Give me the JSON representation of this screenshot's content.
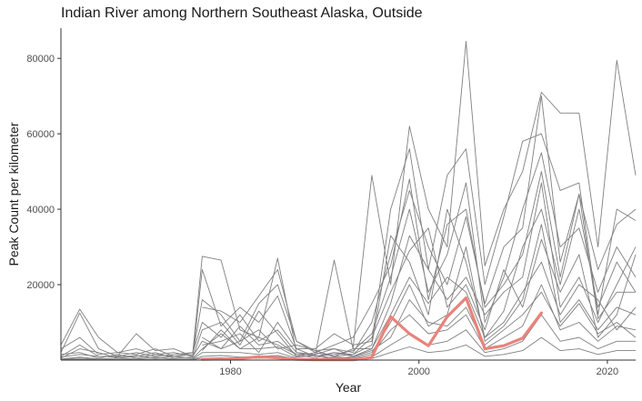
{
  "chart_data": {
    "type": "line",
    "title": "Indian River among Northern Southeast Alaska, Outside",
    "xlabel": "Year",
    "ylabel": "Peak Count per kilometer",
    "xlim": [
      1962,
      2023
    ],
    "ylim": [
      0,
      88000
    ],
    "x_ticks": [
      1980,
      2000,
      2020
    ],
    "y_ticks": [
      20000,
      40000,
      60000,
      80000
    ],
    "grid": false,
    "legend": "none",
    "colors": {
      "highlight": "#E8837A",
      "background_series": "#808080",
      "axis": "#333333",
      "tick_text": "#4d4d4d"
    },
    "highlight_series": {
      "name": "Indian River",
      "x": [
        1977,
        1979,
        1981,
        1983,
        1985,
        1987,
        1989,
        1991,
        1993,
        1995,
        1997,
        1999,
        2001,
        2003,
        2005,
        2007,
        2009,
        2011,
        2013
      ],
      "values": [
        200,
        300,
        400,
        900,
        600,
        200,
        100,
        100,
        100,
        700,
        11500,
        7000,
        3800,
        11500,
        16500,
        3000,
        3800,
        5800,
        12500
      ]
    },
    "background_series": [
      {
        "x": [
          1962,
          1964,
          1966,
          1968,
          1970,
          1972,
          1974,
          1976,
          1977,
          1979,
          1981,
          1983,
          1985,
          1987,
          1989,
          1991,
          1993,
          1995,
          1997,
          1999,
          2001,
          2003,
          2005,
          2007,
          2009,
          2011,
          2013,
          2015,
          2017,
          2019,
          2021,
          2023
        ],
        "values": [
          4000,
          13500,
          6000,
          2000,
          3000,
          1500,
          1000,
          2000,
          27500,
          26500,
          8000,
          6000,
          27000,
          2000,
          1500,
          26500,
          3000,
          49000,
          20000,
          62000,
          40000,
          30000,
          84500,
          25000,
          40000,
          50000,
          71000,
          65500,
          65500,
          30000,
          79500,
          49000
        ]
      },
      {
        "x": [
          1962,
          1964,
          1966,
          1968,
          1970,
          1972,
          1974,
          1976,
          1977,
          1979,
          1981,
          1983,
          1985,
          1987,
          1989,
          1991,
          1993,
          1995,
          1997,
          1999,
          2001,
          2003,
          2005,
          2007,
          2009,
          2011,
          2013,
          2015,
          2017,
          2019,
          2021,
          2023
        ],
        "values": [
          2000,
          12500,
          3000,
          1000,
          7000,
          2500,
          3000,
          1000,
          24000,
          9000,
          14000,
          10000,
          17000,
          3000,
          3000,
          7000,
          4000,
          5000,
          40000,
          56000,
          24000,
          49000,
          56000,
          20000,
          38000,
          58000,
          60000,
          45000,
          47000,
          12000,
          40000,
          37000
        ]
      },
      {
        "x": [
          1962,
          1964,
          1966,
          1968,
          1970,
          1972,
          1974,
          1976,
          1977,
          1979,
          1981,
          1983,
          1985,
          1987,
          1989,
          1991,
          1993,
          1995,
          1997,
          1999,
          2001,
          2003,
          2005,
          2007,
          2009,
          2011,
          2013,
          2015,
          2017,
          2019,
          2021,
          2023
        ],
        "values": [
          3000,
          6000,
          1500,
          2000,
          1500,
          3000,
          1000,
          1500,
          16000,
          12000,
          5000,
          15000,
          20000,
          5000,
          2500,
          3000,
          2000,
          10000,
          28000,
          45000,
          30000,
          20000,
          38000,
          15000,
          30000,
          35000,
          70000,
          26000,
          44000,
          24000,
          36000,
          40000
        ]
      },
      {
        "x": [
          1962,
          1964,
          1966,
          1968,
          1970,
          1972,
          1974,
          1976,
          1977,
          1979,
          1981,
          1983,
          1985,
          1987,
          1989,
          1991,
          1993,
          1995,
          1997,
          1999,
          2001,
          2003,
          2005,
          2007,
          2009,
          2011,
          2013,
          2015,
          2017,
          2019,
          2021,
          2023
        ],
        "values": [
          1000,
          4000,
          1000,
          1000,
          2000,
          1000,
          1500,
          2000,
          10000,
          6000,
          12000,
          5000,
          8000,
          2000,
          1000,
          1500,
          2500,
          7000,
          22000,
          40000,
          18000,
          28000,
          47000,
          10000,
          22000,
          40000,
          55000,
          30000,
          35000,
          18000,
          30000,
          22000
        ]
      },
      {
        "x": [
          1962,
          1964,
          1966,
          1968,
          1970,
          1972,
          1974,
          1976,
          1977,
          1979,
          1981,
          1983,
          1985,
          1987,
          1989,
          1991,
          1993,
          1995,
          1997,
          1999,
          2001,
          2003,
          2005,
          2007,
          2009,
          2011,
          2013,
          2015,
          2017,
          2019,
          2021,
          2023
        ],
        "values": [
          500,
          3000,
          2000,
          500,
          1000,
          2000,
          500,
          800,
          8000,
          10000,
          4000,
          13000,
          7000,
          1000,
          2000,
          1000,
          1500,
          4000,
          33000,
          26000,
          12000,
          40000,
          26000,
          6000,
          13000,
          30000,
          40000,
          20000,
          40000,
          14000,
          26000,
          18000
        ]
      },
      {
        "x": [
          1962,
          1964,
          1966,
          1968,
          1970,
          1972,
          1974,
          1976,
          1977,
          1979,
          1981,
          1983,
          1985,
          1987,
          1989,
          1991,
          1993,
          1995,
          1997,
          1999,
          2001,
          2003,
          2005,
          2007,
          2009,
          2011,
          2013,
          2015,
          2017,
          2019,
          2021,
          2023
        ],
        "values": [
          1500,
          2000,
          500,
          1500,
          500,
          1500,
          2000,
          1000,
          5000,
          3000,
          9000,
          4000,
          5000,
          1500,
          500,
          2000,
          1000,
          3000,
          15000,
          33000,
          24000,
          16000,
          22000,
          12000,
          18000,
          22000,
          47000,
          14000,
          22000,
          10000,
          20000,
          30000
        ]
      },
      {
        "x": [
          1962,
          1964,
          1966,
          1968,
          1970,
          1972,
          1974,
          1976,
          1977,
          1979,
          1981,
          1983,
          1985,
          1987,
          1989,
          1991,
          1993,
          1995,
          1997,
          1999,
          2001,
          2003,
          2005,
          2007,
          2009,
          2011,
          2013,
          2015,
          2017,
          2019,
          2021,
          2023
        ],
        "values": [
          800,
          1500,
          1000,
          800,
          1200,
          500,
          1000,
          500,
          3000,
          7000,
          3000,
          3000,
          3500,
          800,
          1200,
          500,
          800,
          2000,
          10000,
          20000,
          9000,
          12000,
          30000,
          5000,
          9000,
          16000,
          36000,
          10000,
          16000,
          8000,
          14000,
          12000
        ]
      },
      {
        "x": [
          1962,
          1964,
          1966,
          1968,
          1970,
          1972,
          1974,
          1976,
          1977,
          1979,
          1981,
          1983,
          1985,
          1987,
          1989,
          1991,
          1993,
          1995,
          1997,
          1999,
          2001,
          2003,
          2005,
          2007,
          2009,
          2011,
          2013,
          2015,
          2017,
          2019,
          2021,
          2023
        ],
        "values": [
          300,
          800,
          300,
          500,
          300,
          800,
          300,
          300,
          2000,
          2000,
          2000,
          1500,
          2000,
          500,
          300,
          800,
          500,
          1500,
          8000,
          12000,
          7000,
          8000,
          12000,
          3000,
          6000,
          9000,
          20000,
          8000,
          10000,
          5000,
          9000,
          8000
        ]
      },
      {
        "x": [
          1962,
          1964,
          1966,
          1968,
          1970,
          1972,
          1974,
          1976,
          1977,
          1979,
          1981,
          1983,
          1985,
          1987,
          1989,
          1991,
          1993,
          1995,
          1997,
          1999,
          2001,
          2003,
          2005,
          2007,
          2009,
          2011,
          2013,
          2015,
          2017,
          2019,
          2021,
          2023
        ],
        "values": [
          200,
          500,
          200,
          200,
          200,
          300,
          200,
          200,
          1000,
          1200,
          800,
          1000,
          1200,
          300,
          200,
          400,
          300,
          800,
          4000,
          7000,
          4000,
          5000,
          8000,
          2000,
          3000,
          5000,
          12000,
          5000,
          6000,
          3000,
          5000,
          5000
        ]
      },
      {
        "x": [
          1962,
          1964,
          1966,
          1968,
          1970,
          1972,
          1974,
          1976,
          1977,
          1979,
          1981,
          1983,
          1985,
          1987,
          1989,
          1991,
          1993,
          1995,
          1997,
          1999,
          2001,
          2003,
          2005,
          2007,
          2009,
          2011,
          2013,
          2015,
          2017,
          2019,
          2021,
          2023
        ],
        "values": [
          100,
          200,
          100,
          100,
          100,
          100,
          100,
          100,
          500,
          600,
          400,
          500,
          600,
          200,
          100,
          200,
          200,
          400,
          2000,
          3500,
          2000,
          2500,
          4000,
          1000,
          1500,
          2500,
          6000,
          2500,
          3000,
          1500,
          2500,
          2500
        ]
      },
      {
        "x": [
          1977,
          1979,
          1981,
          1983,
          1985,
          1987,
          1989,
          1991,
          1993,
          1995,
          1997,
          1999,
          2001,
          2003,
          2005,
          2007,
          2009,
          2011,
          2013,
          2015,
          2017,
          2019,
          2021,
          2023
        ],
        "values": [
          14000,
          13000,
          10000,
          17000,
          24000,
          5000,
          2000,
          4000,
          6000,
          15000,
          25000,
          48000,
          16000,
          36000,
          40000,
          14000,
          20000,
          28000,
          50000,
          22000,
          44000,
          11000,
          18000,
          18000
        ]
      },
      {
        "x": [
          1977,
          1979,
          1981,
          1983,
          1985,
          1987,
          1989,
          1991,
          1993,
          1995,
          1997,
          1999,
          2001,
          2003,
          2005,
          2007,
          2009,
          2011,
          2013,
          2015,
          2017,
          2019,
          2021,
          2023
        ],
        "values": [
          4000,
          5000,
          7000,
          2000,
          10000,
          3000,
          1000,
          2000,
          1500,
          6000,
          18000,
          29000,
          35000,
          14000,
          20000,
          8000,
          24000,
          14000,
          32000,
          18000,
          28000,
          6000,
          12000,
          28000
        ]
      },
      {
        "x": [
          1977,
          1979,
          1981,
          1983,
          1985,
          1987,
          1989,
          1991,
          1993,
          1995,
          1997,
          1999,
          2001,
          2003,
          2005,
          2007,
          2009,
          2011,
          2013,
          2015,
          2017,
          2019,
          2021,
          2023
        ],
        "values": [
          6000,
          3000,
          5000,
          8000,
          3000,
          4000,
          2500,
          1000,
          3000,
          3000,
          12000,
          22000,
          15000,
          22000,
          18000,
          6000,
          10000,
          18000,
          26000,
          12000,
          20000,
          16000,
          8000,
          14000
        ]
      },
      {
        "x": [
          1977,
          1979,
          1981,
          1983,
          1985,
          1987,
          1989,
          1991,
          1993,
          1995,
          1997,
          1999,
          2001,
          2003,
          2005,
          2007,
          2009,
          2011,
          2013,
          2015,
          2017,
          2019,
          2021,
          2023
        ],
        "values": [
          2500,
          8000,
          3000,
          6000,
          4000,
          1500,
          1500,
          3000,
          1000,
          2500,
          6000,
          16000,
          10000,
          9000,
          14000,
          4000,
          8000,
          12000,
          18000,
          9000,
          15000,
          7000,
          10000,
          6000
        ]
      }
    ]
  }
}
